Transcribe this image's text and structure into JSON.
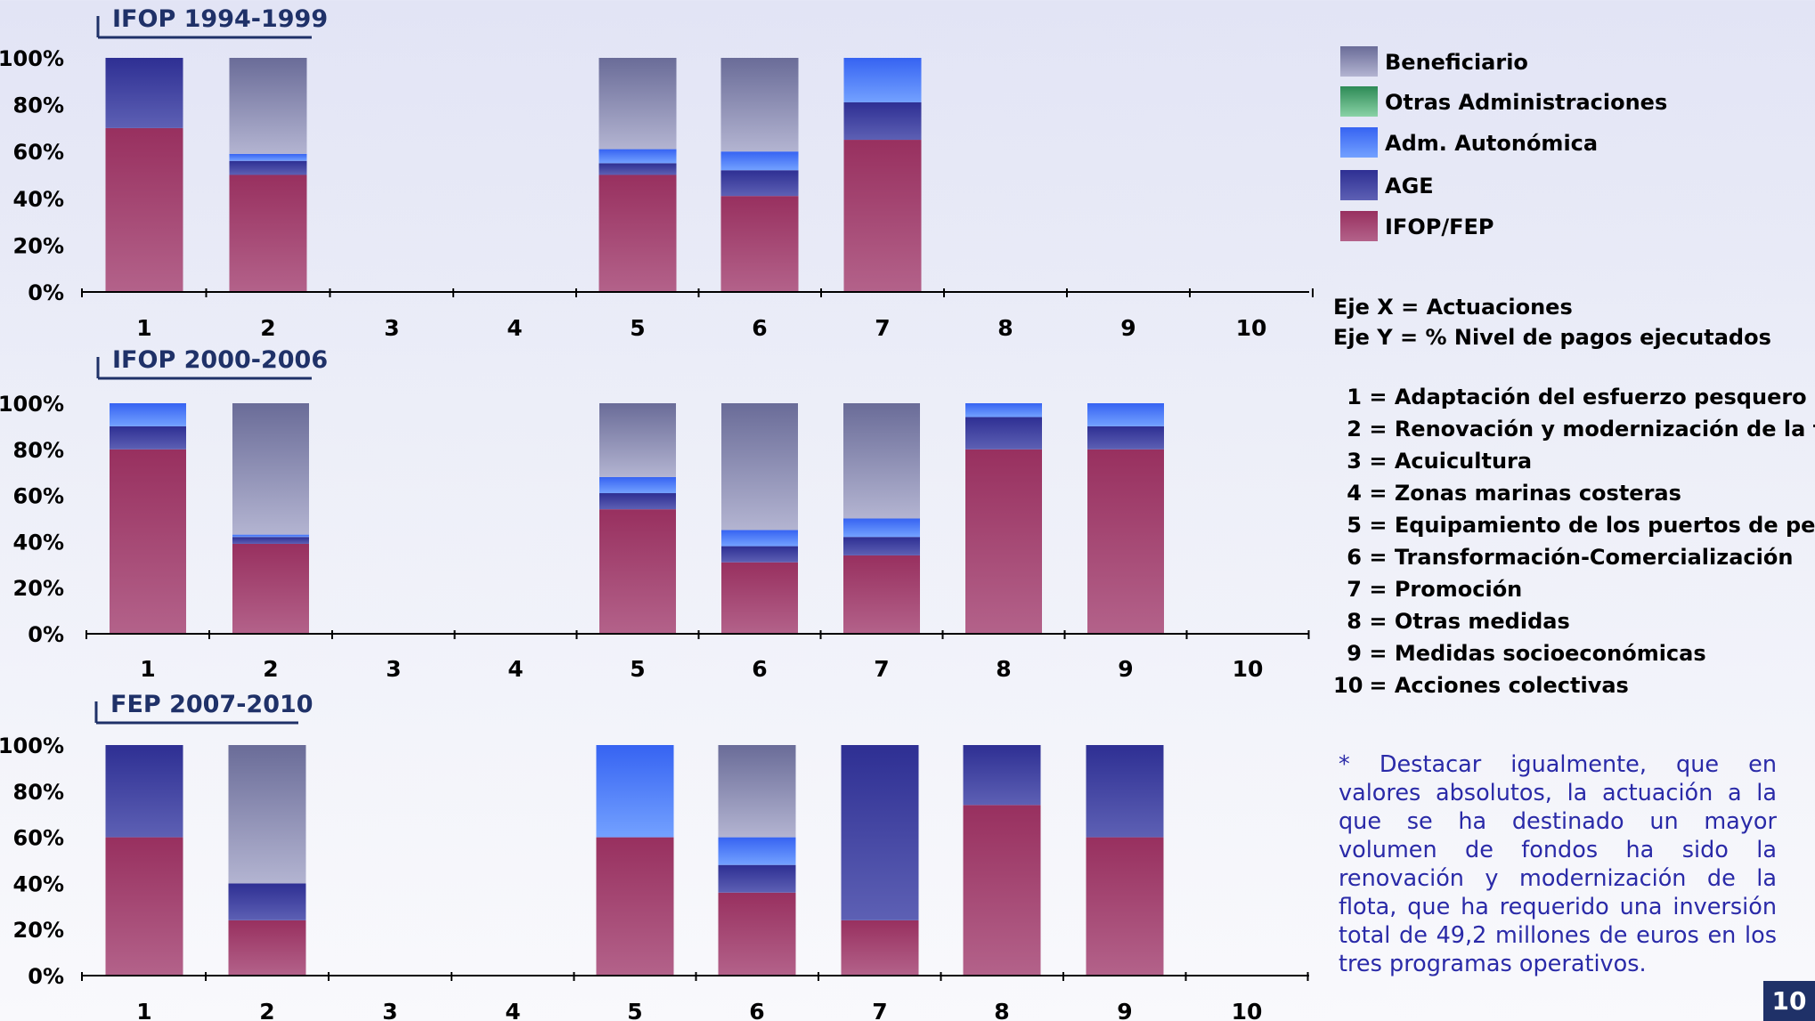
{
  "chart_data": [
    {
      "type": "bar",
      "stacked": true,
      "title": "IFOP 1994-1999",
      "categories": [
        "1",
        "2",
        "3",
        "4",
        "5",
        "6",
        "7",
        "8",
        "9",
        "10"
      ],
      "yticks": [
        "0%",
        "20%",
        "40%",
        "60%",
        "80%",
        "100%"
      ],
      "ylim": [
        0,
        100
      ],
      "series": [
        {
          "name": "IFOP/FEP",
          "values": [
            70,
            50,
            0,
            0,
            50,
            41,
            65,
            0,
            0,
            0
          ]
        },
        {
          "name": "AGE",
          "values": [
            30,
            6,
            0,
            0,
            5,
            11,
            16,
            0,
            0,
            0
          ]
        },
        {
          "name": "Adm. Autonómica",
          "values": [
            0,
            3,
            0,
            0,
            6,
            8,
            19,
            0,
            0,
            0
          ]
        },
        {
          "name": "Otras Administraciones",
          "values": [
            0,
            0,
            0,
            0,
            0,
            0,
            0,
            0,
            0,
            0
          ]
        },
        {
          "name": "Beneficiario",
          "values": [
            0,
            41,
            0,
            0,
            39,
            40,
            0,
            0,
            0,
            0
          ]
        }
      ]
    },
    {
      "type": "bar",
      "stacked": true,
      "title": "IFOP 2000-2006",
      "categories": [
        "1",
        "2",
        "3",
        "4",
        "5",
        "6",
        "7",
        "8",
        "9",
        "10"
      ],
      "yticks": [
        "0%",
        "20%",
        "40%",
        "60%",
        "80%",
        "100%"
      ],
      "ylim": [
        0,
        100
      ],
      "series": [
        {
          "name": "IFOP/FEP",
          "values": [
            80,
            39,
            0,
            0,
            54,
            31,
            34,
            80,
            80,
            0
          ]
        },
        {
          "name": "AGE",
          "values": [
            10,
            3,
            0,
            0,
            7,
            7,
            8,
            14,
            10,
            0
          ]
        },
        {
          "name": "Adm. Autonómica",
          "values": [
            10,
            1,
            0,
            0,
            7,
            7,
            8,
            6,
            10,
            0
          ]
        },
        {
          "name": "Otras Administraciones",
          "values": [
            0,
            0,
            0,
            0,
            0,
            0,
            0,
            0,
            0,
            0
          ]
        },
        {
          "name": "Beneficiario",
          "values": [
            0,
            57,
            0,
            0,
            32,
            55,
            50,
            0,
            0,
            0
          ]
        }
      ]
    },
    {
      "type": "bar",
      "stacked": true,
      "title": "FEP 2007-2010",
      "categories": [
        "1",
        "2",
        "3",
        "4",
        "5",
        "6",
        "7",
        "8",
        "9",
        "10"
      ],
      "yticks": [
        "0%",
        "20%",
        "40%",
        "60%",
        "80%",
        "100%"
      ],
      "ylim": [
        0,
        100
      ],
      "series": [
        {
          "name": "IFOP/FEP",
          "values": [
            60,
            24,
            0,
            0,
            60,
            36,
            24,
            74,
            60,
            0
          ]
        },
        {
          "name": "AGE",
          "values": [
            40,
            16,
            0,
            0,
            0,
            12,
            76,
            26,
            40,
            0
          ]
        },
        {
          "name": "Adm. Autonómica",
          "values": [
            0,
            0,
            0,
            0,
            40,
            12,
            0,
            0,
            0,
            0
          ]
        },
        {
          "name": "Otras Administraciones",
          "values": [
            0,
            0,
            0,
            0,
            0,
            0,
            0,
            0,
            0,
            0
          ]
        },
        {
          "name": "Beneficiario",
          "values": [
            0,
            60,
            0,
            0,
            0,
            40,
            0,
            0,
            0,
            0
          ]
        }
      ]
    }
  ],
  "colors": {
    "IFOP/FEP": [
      "#98305f",
      "#b3628a"
    ],
    "AGE": [
      "#2e2f93",
      "#5d60b4"
    ],
    "Adm. Autonómica": [
      "#3663f2",
      "#73a1ff"
    ],
    "Otras Administraciones": [
      "#2d8a56",
      "#8ad2a6"
    ],
    "Beneficiario": [
      "#6a6c98",
      "#b3b4d1"
    ],
    "title_color": "#1f3168",
    "note_color": "#2a2aa8",
    "page_number_bg": "#1f3168"
  },
  "legend": {
    "items": [
      {
        "label": "Beneficiario",
        "series": "Beneficiario"
      },
      {
        "label": "Otras Administraciones",
        "series": "Otras Administraciones"
      },
      {
        "label": "Adm. Autonómica",
        "series": "Adm. Autonómica"
      },
      {
        "label": "AGE",
        "series": "AGE"
      },
      {
        "label": "IFOP/FEP",
        "series": "IFOP/FEP"
      }
    ]
  },
  "axis_info": {
    "x": "Eje X = Actuaciones",
    "y": "Eje Y = % Nivel de pagos ejecutados"
  },
  "actuaciones": [
    {
      "num": "1",
      "label": "= Adaptación del esfuerzo pesquero"
    },
    {
      "num": "2",
      "label": "= Renovación y modernización de la flota"
    },
    {
      "num": "3",
      "label": "= Acuicultura"
    },
    {
      "num": "4",
      "label": "= Zonas marinas costeras"
    },
    {
      "num": "5",
      "label": "= Equipamiento de los puertos de pesca"
    },
    {
      "num": "6",
      "label": "= Transformación-Comercialización"
    },
    {
      "num": "7",
      "label": "= Promoción"
    },
    {
      "num": "8",
      "label": "= Otras medidas"
    },
    {
      "num": "9",
      "label": "= Medidas socioeconómicas"
    },
    {
      "num": "10",
      "label": "= Acciones colectivas"
    }
  ],
  "note": "* Destacar igualmente, que en valores absolutos, la actuación a la que se ha destinado un mayor volumen de fondos ha sido la renovación y modernización de la flota, que ha requerido una inversión total de 49,2 millones de euros en los tres programas operativos.",
  "page_number": "10"
}
